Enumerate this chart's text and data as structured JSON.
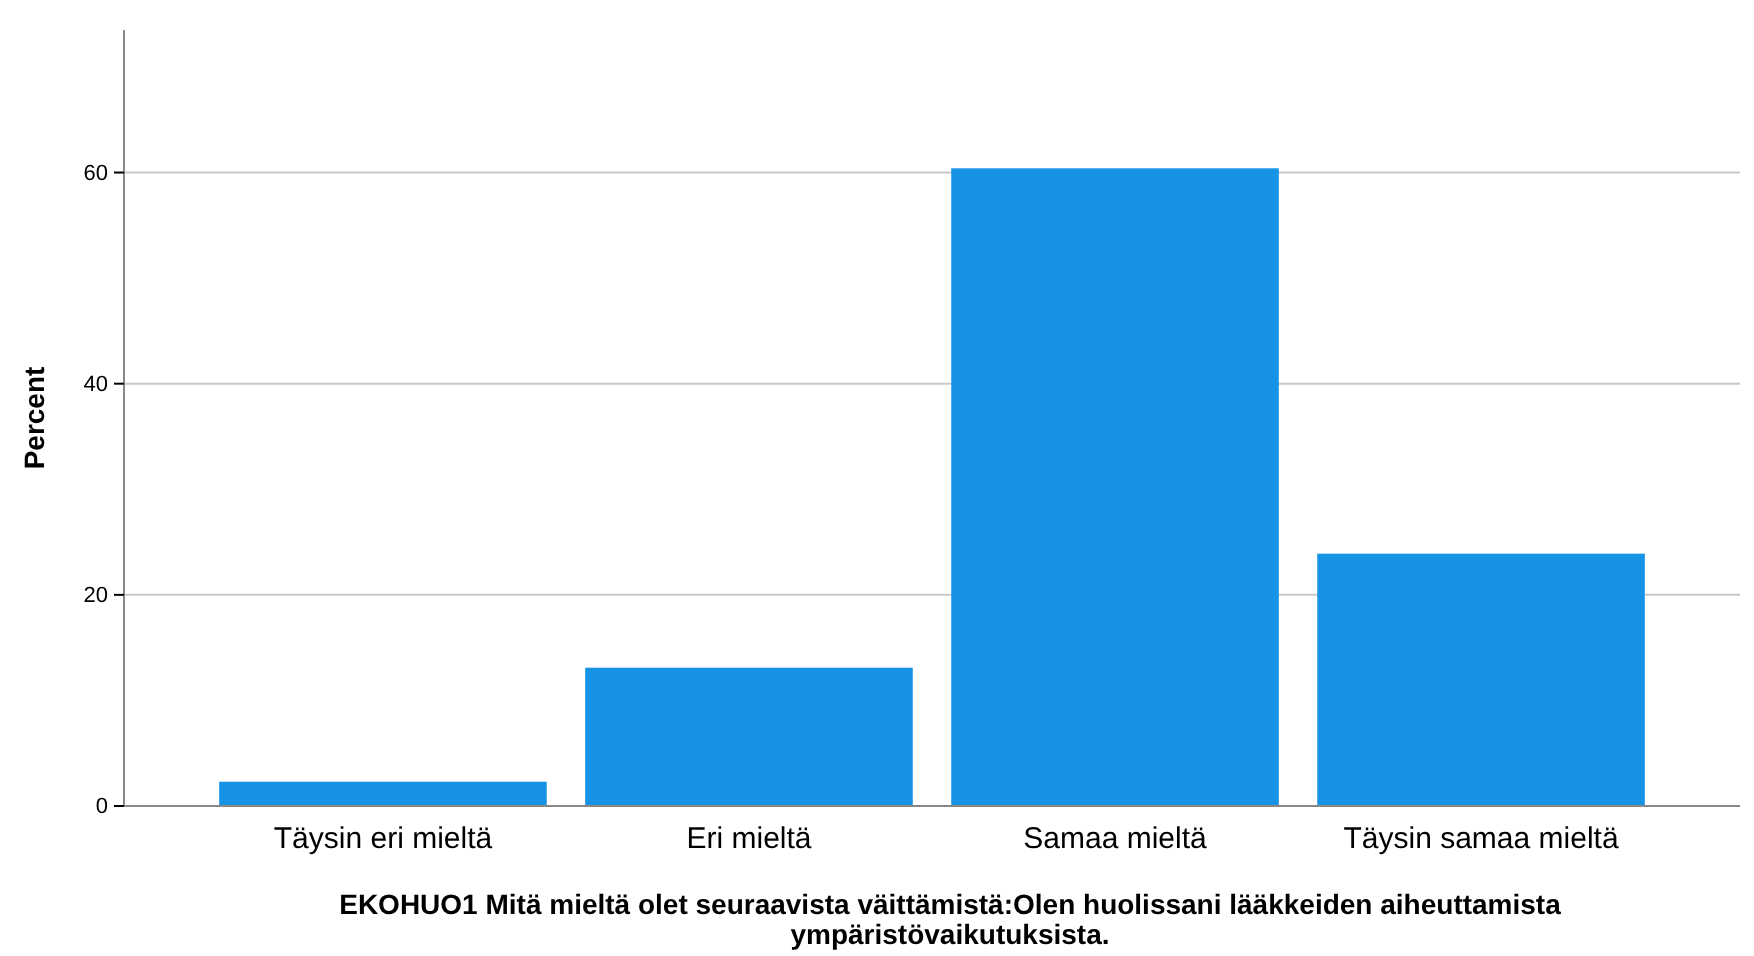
{
  "chart_data": {
    "type": "bar",
    "xlabel": "EKOHUO1 Mitä mieltä olet seuraavista väittämistä:Olen huolissani lääkkeiden aiheuttamista ympäristövaikutuksista.",
    "ylabel": "Percent",
    "categories": [
      "Täysin eri mieltä",
      "Eri mieltä",
      "Samaa mieltä",
      "Täysin samaa mieltä"
    ],
    "values": [
      2.3,
      13.1,
      60.4,
      23.9
    ],
    "color": "#1793e6",
    "ylim": [
      0,
      73.5
    ],
    "yticks": [
      0,
      20,
      40,
      60
    ],
    "grid": "y"
  }
}
